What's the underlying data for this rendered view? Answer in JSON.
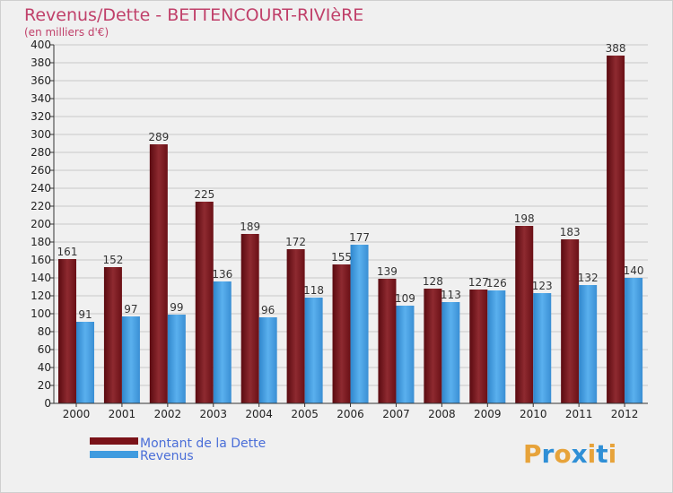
{
  "chart_data": {
    "type": "bar",
    "title": "Revenus/Dette - BETTENCOURT-RIVIèRE",
    "subtitle": "(en milliers d'€)",
    "categories": [
      "2000",
      "2001",
      "2002",
      "2003",
      "2004",
      "2005",
      "2006",
      "2007",
      "2008",
      "2009",
      "2010",
      "2011",
      "2012"
    ],
    "series": [
      {
        "name": "Montant de la Dette",
        "color": "#7a1218",
        "values": [
          161,
          152,
          289,
          225,
          189,
          172,
          155,
          139,
          128,
          127,
          198,
          183,
          388
        ]
      },
      {
        "name": "Revenus",
        "color": "#3f9bdf",
        "values": [
          91,
          97,
          99,
          136,
          96,
          118,
          177,
          109,
          113,
          126,
          123,
          132,
          140
        ]
      }
    ],
    "ylim": [
      0,
      400
    ],
    "ytick_step": 20,
    "grid": true,
    "legend_position": "bottom-left"
  },
  "brand": {
    "logo_letters": [
      "P",
      "r",
      "o",
      "x",
      "i",
      "t",
      "i"
    ],
    "logo_colors": [
      "#e7a33a",
      "#2f8fd6",
      "#e7a33a",
      "#2f8fd6",
      "#e7a33a",
      "#2f8fd6",
      "#e7a33a"
    ]
  }
}
